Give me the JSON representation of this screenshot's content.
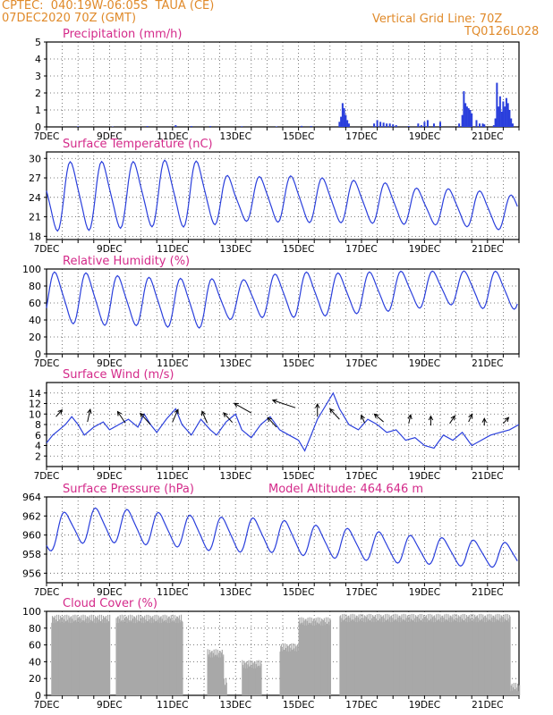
{
  "header": {
    "line1": "CPTEC:  040:19W-06:05S  TAUA (CE)",
    "line2": "07DEC2020 70Z (GMT)",
    "right1": "Vertical Grid Line: 70Z",
    "right2": "TQ0126L028"
  },
  "x_ticks": [
    "7DEC",
    "9DEC",
    "11DEC",
    "13DEC",
    "15DEC",
    "17DEC",
    "19DEC",
    "21DEC"
  ],
  "colors": {
    "header": "#e08a2a",
    "title": "#d42a8a",
    "line": "#2a3fdc",
    "cloud": "#a8a8a8"
  },
  "chart_data": [
    {
      "id": "precip",
      "type": "bar",
      "title": "Precipitation (mm/h)",
      "ylim": [
        0,
        5
      ],
      "yticks": [
        0,
        1,
        2,
        3,
        4,
        5
      ],
      "x_range_days": [
        0,
        15
      ],
      "series": [
        {
          "values": [
            [
              1.0,
              0.03
            ],
            [
              2.1,
              0.02
            ],
            [
              3.2,
              0.05
            ],
            [
              4.1,
              0.1
            ],
            [
              4.6,
              0.05
            ],
            [
              5.2,
              0.05
            ],
            [
              6.2,
              0.04
            ],
            [
              7.3,
              0.03
            ],
            [
              8.1,
              0.06
            ],
            [
              8.4,
              0.05
            ],
            [
              9.3,
              0.3
            ],
            [
              9.35,
              0.6
            ],
            [
              9.4,
              1.4
            ],
            [
              9.45,
              1.1
            ],
            [
              9.5,
              0.7
            ],
            [
              9.55,
              0.4
            ],
            [
              9.6,
              0.2
            ],
            [
              10.4,
              0.2
            ],
            [
              10.5,
              0.4
            ],
            [
              10.6,
              0.3
            ],
            [
              10.7,
              0.25
            ],
            [
              10.8,
              0.2
            ],
            [
              10.9,
              0.2
            ],
            [
              11.0,
              0.15
            ],
            [
              11.1,
              0.1
            ],
            [
              11.5,
              0.05
            ],
            [
              11.8,
              0.2
            ],
            [
              11.9,
              0.1
            ],
            [
              12.0,
              0.3
            ],
            [
              12.1,
              0.4
            ],
            [
              12.3,
              0.2
            ],
            [
              12.5,
              0.3
            ],
            [
              13.1,
              0.2
            ],
            [
              13.2,
              0.7
            ],
            [
              13.25,
              2.1
            ],
            [
              13.3,
              1.4
            ],
            [
              13.35,
              1.2
            ],
            [
              13.4,
              1.1
            ],
            [
              13.45,
              1.0
            ],
            [
              13.5,
              0.8
            ],
            [
              13.65,
              0.4
            ],
            [
              13.75,
              0.2
            ],
            [
              13.85,
              0.2
            ],
            [
              13.9,
              0.15
            ],
            [
              14.2,
              0.1
            ],
            [
              14.25,
              0.5
            ],
            [
              14.3,
              2.6
            ],
            [
              14.35,
              1.2
            ],
            [
              14.4,
              1.8
            ],
            [
              14.45,
              0.9
            ],
            [
              14.5,
              1.5
            ],
            [
              14.55,
              1.2
            ],
            [
              14.6,
              1.7
            ],
            [
              14.65,
              1.4
            ],
            [
              14.7,
              1.0
            ],
            [
              14.75,
              0.5
            ],
            [
              14.8,
              0.2
            ]
          ]
        }
      ]
    },
    {
      "id": "temp",
      "type": "line",
      "title": "Surface Temperature (nC)",
      "ylim": [
        17.5,
        31
      ],
      "yticks": [
        18,
        21,
        24,
        27,
        30
      ],
      "series": [
        {
          "mean": [
            24,
            24.2,
            24.3,
            24.5,
            24.6,
            24.5,
            23.5,
            23.8,
            23.7,
            23.5,
            23.3,
            23,
            22.5,
            22.5,
            22,
            21.5
          ],
          "amp": [
            5.8,
            6,
            5.8,
            5.6,
            5.8,
            5.6,
            3.5,
            4,
            4,
            3.8,
            3.6,
            3.5,
            3,
            3.2,
            3.2,
            3
          ]
        }
      ]
    },
    {
      "id": "rh",
      "type": "line",
      "title": "Relative Humidity (%)",
      "ylim": [
        0,
        100
      ],
      "yticks": [
        0,
        20,
        40,
        60,
        80,
        100
      ],
      "series": [
        {
          "mean": [
            66,
            66,
            63,
            62,
            60,
            60,
            64,
            68,
            70,
            70,
            72,
            74,
            76,
            78,
            75,
            75
          ],
          "amp": [
            34,
            34,
            33,
            32,
            32,
            33,
            24,
            28,
            30,
            28,
            27,
            26,
            24,
            22,
            25,
            25
          ]
        }
      ]
    },
    {
      "id": "wind",
      "type": "line",
      "title": "Surface Wind (m/s)",
      "ylim": [
        0,
        16
      ],
      "yticks": [
        2,
        4,
        6,
        8,
        10,
        12,
        14
      ],
      "series": [
        {
          "values": [
            [
              0,
              4.5
            ],
            [
              0.2,
              6
            ],
            [
              0.4,
              7
            ],
            [
              0.6,
              8
            ],
            [
              0.8,
              9.5
            ],
            [
              1.0,
              8
            ],
            [
              1.2,
              6
            ],
            [
              1.5,
              7.5
            ],
            [
              1.8,
              8.5
            ],
            [
              2.0,
              7
            ],
            [
              2.3,
              8
            ],
            [
              2.6,
              9
            ],
            [
              2.9,
              7.5
            ],
            [
              3.1,
              10
            ],
            [
              3.3,
              8
            ],
            [
              3.5,
              6.5
            ],
            [
              3.8,
              9
            ],
            [
              4.1,
              11
            ],
            [
              4.3,
              8
            ],
            [
              4.6,
              6
            ],
            [
              4.9,
              9
            ],
            [
              5.2,
              7
            ],
            [
              5.4,
              6
            ],
            [
              5.7,
              8.5
            ],
            [
              6.0,
              10
            ],
            [
              6.2,
              7
            ],
            [
              6.5,
              5.5
            ],
            [
              6.8,
              8
            ],
            [
              7.1,
              9.5
            ],
            [
              7.4,
              7
            ],
            [
              7.7,
              6
            ],
            [
              8.0,
              5
            ],
            [
              8.2,
              3
            ],
            [
              8.4,
              6
            ],
            [
              8.6,
              9
            ],
            [
              8.9,
              12
            ],
            [
              9.1,
              14
            ],
            [
              9.3,
              11
            ],
            [
              9.6,
              8
            ],
            [
              9.9,
              7
            ],
            [
              10.2,
              9
            ],
            [
              10.5,
              8
            ],
            [
              10.8,
              6.5
            ],
            [
              11.1,
              7
            ],
            [
              11.4,
              5
            ],
            [
              11.7,
              5.5
            ],
            [
              12.0,
              4
            ],
            [
              12.3,
              3.5
            ],
            [
              12.6,
              6
            ],
            [
              12.9,
              5
            ],
            [
              13.2,
              6.5
            ],
            [
              13.5,
              4
            ],
            [
              13.8,
              5
            ],
            [
              14.1,
              6
            ],
            [
              14.4,
              6.5
            ],
            [
              14.7,
              7
            ],
            [
              15.0,
              8
            ]
          ]
        }
      ],
      "arrows": [
        [
          0.3,
          9.5,
          110,
          0.9
        ],
        [
          1.3,
          8.5,
          95,
          1.6
        ],
        [
          2.5,
          8.3,
          75,
          1.5
        ],
        [
          3.3,
          8.0,
          70,
          1.5
        ],
        [
          4.0,
          8.5,
          100,
          1.6
        ],
        [
          5.1,
          8.3,
          80,
          1.5
        ],
        [
          5.9,
          8.4,
          70,
          1.3
        ],
        [
          6.5,
          10.2,
          55,
          1.5
        ],
        [
          7.3,
          7.5,
          70,
          1.3
        ],
        [
          7.9,
          11.2,
          40,
          1.5
        ],
        [
          8.6,
          9.5,
          90,
          1.6
        ],
        [
          9.3,
          9.0,
          70,
          1.4
        ],
        [
          10.1,
          8.3,
          80,
          1.0
        ],
        [
          10.7,
          8.5,
          65,
          1.1
        ],
        [
          11.5,
          8.2,
          95,
          1.1
        ],
        [
          12.2,
          7.8,
          90,
          1.2
        ],
        [
          12.8,
          8.2,
          105,
          1.0
        ],
        [
          13.4,
          8.5,
          100,
          1.0
        ],
        [
          13.9,
          7.8,
          90,
          0.9
        ],
        [
          14.5,
          8.2,
          110,
          0.8
        ]
      ]
    },
    {
      "id": "press",
      "type": "line",
      "title": "Surface Pressure (hPa)",
      "annotation": "Model Altitude: 464.646 m",
      "ylim": [
        955,
        964
      ],
      "yticks": [
        956,
        958,
        960,
        962,
        964
      ],
      "series": [
        {
          "mean": [
            960,
            961,
            961,
            960.8,
            960.5,
            960.2,
            960,
            960,
            959.6,
            959.2,
            959,
            958.6,
            958.4,
            958.2,
            958,
            957.8
          ],
          "amp": [
            2,
            2.1,
            2,
            2,
            1.9,
            2,
            2,
            2,
            1.9,
            1.8,
            1.8,
            1.7,
            1.6,
            1.6,
            1.5,
            1.5
          ]
        }
      ]
    },
    {
      "id": "cloud",
      "type": "bar",
      "title": "Cloud Cover (%)",
      "ylim": [
        0,
        100
      ],
      "yticks": [
        0,
        20,
        40,
        60,
        80,
        100
      ],
      "segments": [
        [
          0.15,
          2.0,
          96
        ],
        [
          2.2,
          4.3,
          96
        ],
        [
          5.1,
          5.6,
          55
        ],
        [
          5.6,
          5.7,
          20
        ],
        [
          6.2,
          6.8,
          42
        ],
        [
          7.4,
          8.0,
          62
        ],
        [
          8.0,
          9.0,
          93
        ],
        [
          9.3,
          14.7,
          97
        ],
        [
          14.7,
          15.0,
          15
        ]
      ]
    }
  ]
}
